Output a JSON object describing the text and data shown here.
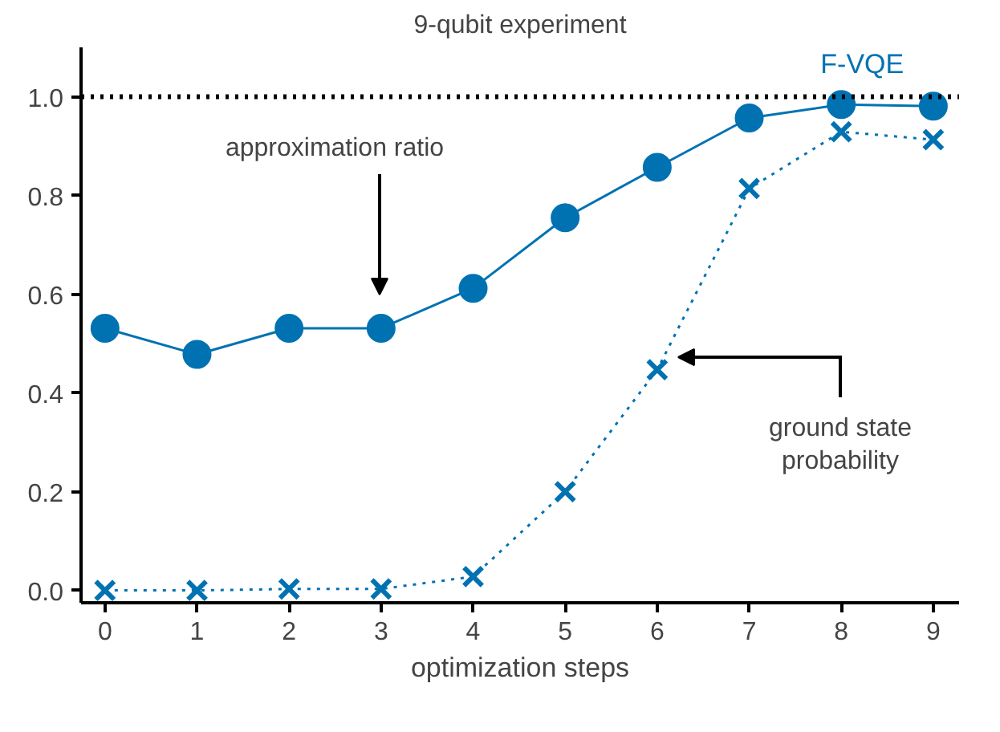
{
  "chart_data": {
    "type": "line",
    "title": "9-qubit experiment",
    "xlabel": "optimization steps",
    "x": [
      0,
      1,
      2,
      3,
      4,
      5,
      6,
      7,
      8,
      9
    ],
    "xlim": [
      -0.26,
      9.28
    ],
    "ylim": [
      -0.025,
      1.1
    ],
    "xticks": [
      0,
      1,
      2,
      3,
      4,
      5,
      6,
      7,
      8,
      9
    ],
    "yticks": [
      {
        "value": 0,
        "label": "0.0"
      },
      0.2,
      0.4,
      0.6,
      0.8,
      {
        "value": 1,
        "label": "1.0"
      }
    ],
    "series": [
      {
        "name": "F-VQE",
        "color": "#0072b2",
        "marker": "circle",
        "line_style": "solid",
        "values": [
          0.531,
          0.478,
          0.531,
          0.531,
          0.612,
          0.755,
          0.857,
          0.957,
          0.984,
          0.981
        ]
      },
      {
        "color": "#0072b2",
        "marker": "cross",
        "line_style": "dotted",
        "values": [
          0.0,
          0.0,
          0.003,
          0.003,
          0.028,
          0.2,
          0.447,
          0.814,
          0.929,
          0.913
        ]
      }
    ],
    "ref_lines": [
      {
        "axis": "y",
        "value": 1.0,
        "color": "#000000",
        "line_style": "dotted"
      }
    ],
    "annotations": [
      "approximation ratio",
      "ground state\nprobability"
    ],
    "legend": "top right",
    "grid": false
  }
}
